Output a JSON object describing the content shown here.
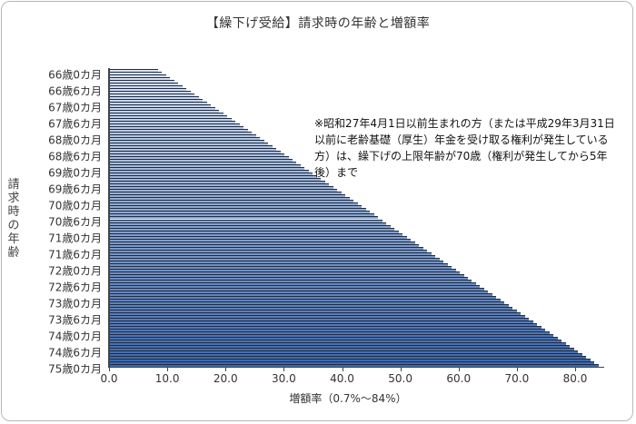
{
  "chart_data": {
    "type": "bar",
    "orientation": "horizontal",
    "title": "【繰下げ受給】請求時の年齢と増額率",
    "xlabel": "増額率（0.7%～84%）",
    "ylabel": "請求時の年齢",
    "xlim": [
      0,
      84
    ],
    "x_ticks": [
      "0.0",
      "10.0",
      "20.0",
      "30.0",
      "40.0",
      "50.0",
      "60.0",
      "70.0",
      "80.0"
    ],
    "y_tick_labels": [
      "66歳0カ月",
      "66歳6カ月",
      "67歳0カ月",
      "67歳6カ月",
      "68歳0カ月",
      "68歳6カ月",
      "69歳0カ月",
      "69歳6カ月",
      "70歳0カ月",
      "70歳6カ月",
      "71歳0カ月",
      "71歳6カ月",
      "72歳0カ月",
      "72歳6カ月",
      "73歳0カ月",
      "73歳6カ月",
      "74歳0カ月",
      "74歳6カ月",
      "75歳0カ月"
    ],
    "series": [
      {
        "name": "増額率",
        "description": "One bar per month from 66歳0カ月 to 75歳0カ月 (109 bars); value = months deferred beyond 65 × 0.7%",
        "start_age_months_over_65": 12,
        "end_age_months_over_65": 120,
        "rate_per_month": 0.7,
        "first_value": 8.4,
        "last_value": 84.0
      }
    ],
    "annotation": "※昭和27年4月1日以前生まれの方（または平成29年3月31日以前に老齢基礎（厚生）年金を受け取る権利が発生している方）は、繰下げの上限年齢が70歳（権利が発生してから5年後）まで",
    "grid": false,
    "legend": "none",
    "colors": {
      "bar_light": "#d9e2f0",
      "bar_dark": "#3f68a8",
      "bar_edge": "#1c2c48"
    }
  },
  "title": "【繰下げ受給】請求時の年齢と増額率",
  "ylabel_chars": [
    "請",
    "求",
    "時",
    "の",
    "年",
    "齢"
  ],
  "xlabel": "増額率（0.7%～84%）",
  "note": "※昭和27年4月1日以前生まれの方（または平成29年3月31日以前に老齢基礎（厚生）年金を受け取る権利が発生している方）は、繰下げの上限年齢が70歳（権利が発生してから5年後）まで"
}
